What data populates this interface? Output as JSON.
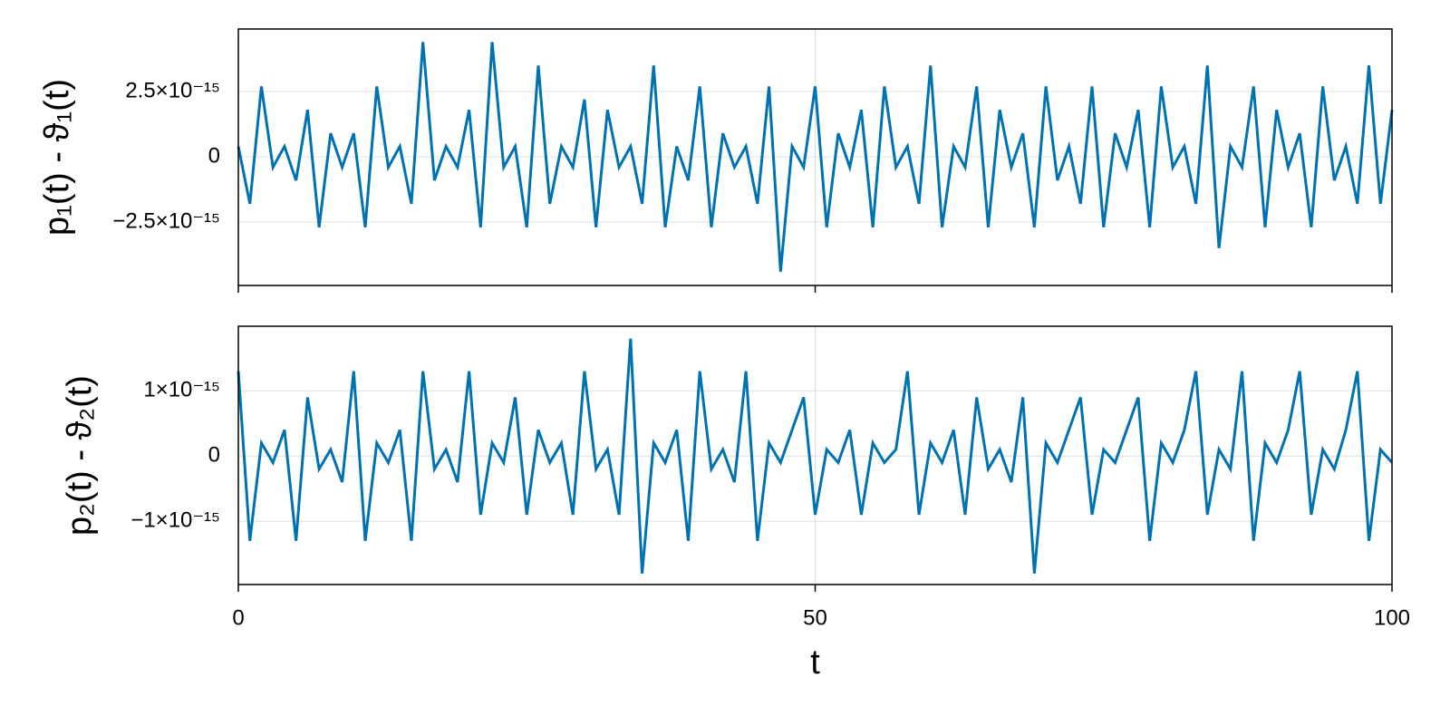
{
  "chart_data": [
    {
      "type": "line",
      "ylabel": "p₁(t) - ϑ₁(t)",
      "color": "#0072b2",
      "grid": true,
      "xlim": [
        0,
        100
      ],
      "xticks": [
        0,
        50,
        100
      ],
      "ylim": [
        -4.93e-15,
        4.9e-15
      ],
      "yticks": [
        {
          "value": -2.5e-15,
          "label": "−2.5×10⁻¹⁵"
        },
        0,
        {
          "value": 2.5e-15,
          "label": "2.5×10⁻¹⁵"
        }
      ],
      "x": [
        0,
        1,
        2,
        3,
        4,
        5,
        6,
        7,
        8,
        9,
        10,
        11,
        12,
        13,
        14,
        15,
        16,
        17,
        18,
        19,
        20,
        21,
        22,
        23,
        24,
        25,
        26,
        27,
        28,
        29,
        30,
        31,
        32,
        33,
        34,
        35,
        36,
        37,
        38,
        39,
        40,
        41,
        42,
        43,
        44,
        45,
        46,
        47,
        48,
        49,
        50,
        51,
        52,
        53,
        54,
        55,
        56,
        57,
        58,
        59,
        60,
        61,
        62,
        63,
        64,
        65,
        66,
        67,
        68,
        69,
        70,
        71,
        72,
        73,
        74,
        75,
        76,
        77,
        78,
        79,
        80,
        81,
        82,
        83,
        84,
        85,
        86,
        87,
        88,
        89,
        90,
        91,
        92,
        93,
        94,
        95,
        96,
        97,
        98,
        99,
        100
      ],
      "values": [
        4e-16,
        -1.8e-15,
        2.7e-15,
        -4e-16,
        4e-16,
        -9e-16,
        1.8e-15,
        -2.7e-15,
        9e-16,
        -4e-16,
        9e-16,
        -2.7e-15,
        2.7e-15,
        -4e-16,
        4e-16,
        -1.8e-15,
        4.4e-15,
        -9e-16,
        4e-16,
        -4e-16,
        1.8e-15,
        -2.7e-15,
        4.4e-15,
        -4e-16,
        4e-16,
        -2.7e-15,
        3.5e-15,
        -1.8e-15,
        4e-16,
        -4e-16,
        2.2e-15,
        -2.7e-15,
        1.8e-15,
        -4e-16,
        4e-16,
        -1.8e-15,
        3.5e-15,
        -2.7e-15,
        4e-16,
        -9e-16,
        2.7e-15,
        -2.7e-15,
        9e-16,
        -4e-16,
        4e-16,
        -1.8e-15,
        2.7e-15,
        -4.4e-15,
        4e-16,
        -4e-16,
        2.7e-15,
        -2.7e-15,
        9e-16,
        -4e-16,
        1.8e-15,
        -2.7e-15,
        2.7e-15,
        -4e-16,
        4e-16,
        -1.8e-15,
        3.5e-15,
        -2.7e-15,
        4e-16,
        -4e-16,
        2.7e-15,
        -2.7e-15,
        1.8e-15,
        -4e-16,
        9e-16,
        -2.7e-15,
        2.7e-15,
        -9e-16,
        4e-16,
        -1.8e-15,
        2.7e-15,
        -2.7e-15,
        9e-16,
        -4e-16,
        1.8e-15,
        -2.7e-15,
        2.7e-15,
        -4e-16,
        4e-16,
        -1.8e-15,
        3.5e-15,
        -3.5e-15,
        4e-16,
        -4e-16,
        2.7e-15,
        -2.7e-15,
        1.8e-15,
        -4e-16,
        9e-16,
        -2.7e-15,
        2.7e-15,
        -9e-16,
        4e-16,
        -1.8e-15,
        3.5e-15,
        -1.8e-15,
        1.8e-15
      ]
    },
    {
      "type": "line",
      "ylabel": "p₂(t) - ϑ₂(t)",
      "xlabel": "t",
      "color": "#0072b2",
      "grid": true,
      "xlim": [
        0,
        100
      ],
      "xticks": [
        0,
        50,
        100
      ],
      "ylim": [
        -1.97e-15,
        1.99e-15
      ],
      "yticks": [
        {
          "value": -1e-15,
          "label": "−1×10⁻¹⁵"
        },
        0,
        {
          "value": 1e-15,
          "label": "1×10⁻¹⁵"
        }
      ],
      "x": [
        0,
        1,
        2,
        3,
        4,
        5,
        6,
        7,
        8,
        9,
        10,
        11,
        12,
        13,
        14,
        15,
        16,
        17,
        18,
        19,
        20,
        21,
        22,
        23,
        24,
        25,
        26,
        27,
        28,
        29,
        30,
        31,
        32,
        33,
        34,
        35,
        36,
        37,
        38,
        39,
        40,
        41,
        42,
        43,
        44,
        45,
        46,
        47,
        48,
        49,
        50,
        51,
        52,
        53,
        54,
        55,
        56,
        57,
        58,
        59,
        60,
        61,
        62,
        63,
        64,
        65,
        66,
        67,
        68,
        69,
        70,
        71,
        72,
        73,
        74,
        75,
        76,
        77,
        78,
        79,
        80,
        81,
        82,
        83,
        84,
        85,
        86,
        87,
        88,
        89,
        90,
        91,
        92,
        93,
        94,
        95,
        96,
        97,
        98,
        99,
        100
      ],
      "values": [
        1.3e-15,
        -1.3e-15,
        2e-16,
        -1e-16,
        4e-16,
        -1.3e-15,
        9e-16,
        -2e-16,
        1e-16,
        -4e-16,
        1.3e-15,
        -1.3e-15,
        2e-16,
        -1e-16,
        4e-16,
        -1.3e-15,
        1.3e-15,
        -2e-16,
        1e-16,
        -4e-16,
        1.3e-15,
        -9e-16,
        2e-16,
        -1e-16,
        9e-16,
        -9e-16,
        4e-16,
        -1e-16,
        2e-16,
        -9e-16,
        1.3e-15,
        -2e-16,
        1e-16,
        -9e-16,
        1.8e-15,
        -1.8e-15,
        2e-16,
        -1e-16,
        4e-16,
        -1.3e-15,
        1.3e-15,
        -2e-16,
        1e-16,
        -4e-16,
        1.3e-15,
        -1.3e-15,
        2e-16,
        -1e-16,
        4e-16,
        9e-16,
        -9e-16,
        1e-16,
        -1e-16,
        4e-16,
        -9e-16,
        2e-16,
        -1e-16,
        1e-16,
        1.3e-15,
        -9e-16,
        2e-16,
        -1e-16,
        4e-16,
        -9e-16,
        9e-16,
        -2e-16,
        1e-16,
        -4e-16,
        9e-16,
        -1.8e-15,
        2e-16,
        -1e-16,
        4e-16,
        9e-16,
        -9e-16,
        1e-16,
        -1e-16,
        4e-16,
        9e-16,
        -1.3e-15,
        2e-16,
        -1e-16,
        4e-16,
        1.3e-15,
        -9e-16,
        1e-16,
        -2e-16,
        1.3e-15,
        -1.3e-15,
        2e-16,
        -1e-16,
        4e-16,
        1.3e-15,
        -9e-16,
        1e-16,
        -2e-16,
        4e-16,
        1.3e-15,
        -1.3e-15,
        1e-16,
        -1e-16
      ]
    }
  ]
}
